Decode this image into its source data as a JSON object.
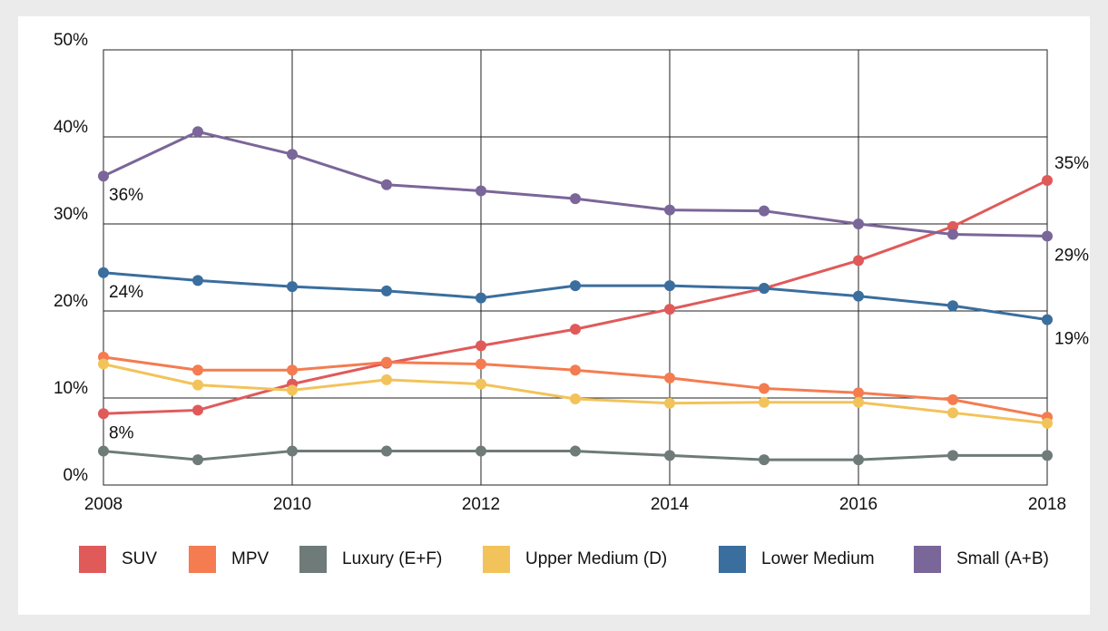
{
  "chart_data": {
    "type": "line",
    "x": [
      2008,
      2009,
      2010,
      2011,
      2012,
      2013,
      2014,
      2015,
      2016,
      2017,
      2018
    ],
    "xlim": [
      2008,
      2018
    ],
    "xticks": [
      2008,
      2010,
      2012,
      2014,
      2016,
      2018
    ],
    "ylim": [
      0,
      50
    ],
    "yticks": [
      {
        "value": 0,
        "label": "0%"
      },
      {
        "value": 10,
        "label": "10%"
      },
      {
        "value": 20,
        "label": "20%"
      },
      {
        "value": 30,
        "label": "30%"
      },
      {
        "value": 40,
        "label": "40%"
      },
      {
        "value": 50,
        "label": "50%"
      }
    ],
    "grid": true,
    "legend": "bottom",
    "series": [
      {
        "name": "SUV",
        "color": "#e05a5a",
        "values": [
          8.2,
          8.6,
          11.6,
          14.0,
          16.0,
          17.9,
          20.2,
          22.6,
          25.8,
          29.7,
          35.0
        ],
        "value_labels": [
          "8%",
          null,
          null,
          null,
          null,
          null,
          null,
          null,
          null,
          null,
          "35%"
        ]
      },
      {
        "name": "MPV",
        "color": "#f47c50",
        "values": [
          14.7,
          13.2,
          13.2,
          14.1,
          13.9,
          13.2,
          12.3,
          11.1,
          10.6,
          9.8,
          7.8
        ]
      },
      {
        "name": "Luxury (E+F)",
        "color": "#6e7b78",
        "values": [
          3.9,
          2.9,
          3.9,
          3.9,
          3.9,
          3.9,
          3.4,
          2.9,
          2.9,
          3.4,
          3.4
        ]
      },
      {
        "name": "Upper Medium (D)",
        "color": "#f2c35a",
        "values": [
          13.9,
          11.5,
          10.9,
          12.1,
          11.6,
          9.9,
          9.4,
          9.5,
          9.5,
          8.3,
          7.1
        ]
      },
      {
        "name": "Lower Medium",
        "color": "#3a6e9e",
        "values": [
          24.4,
          23.5,
          22.8,
          22.3,
          21.5,
          22.9,
          22.9,
          22.6,
          21.7,
          20.6,
          19.0
        ],
        "value_labels": [
          "24%",
          null,
          null,
          null,
          null,
          null,
          null,
          null,
          null,
          null,
          "19%"
        ]
      },
      {
        "name": "Small (A+B)",
        "color": "#7a6699",
        "values": [
          35.5,
          40.6,
          38.0,
          34.5,
          33.8,
          32.9,
          31.6,
          31.5,
          30.0,
          28.8,
          28.6
        ],
        "value_labels": [
          "36%",
          null,
          null,
          null,
          null,
          null,
          null,
          null,
          null,
          null,
          "29%"
        ]
      }
    ]
  }
}
